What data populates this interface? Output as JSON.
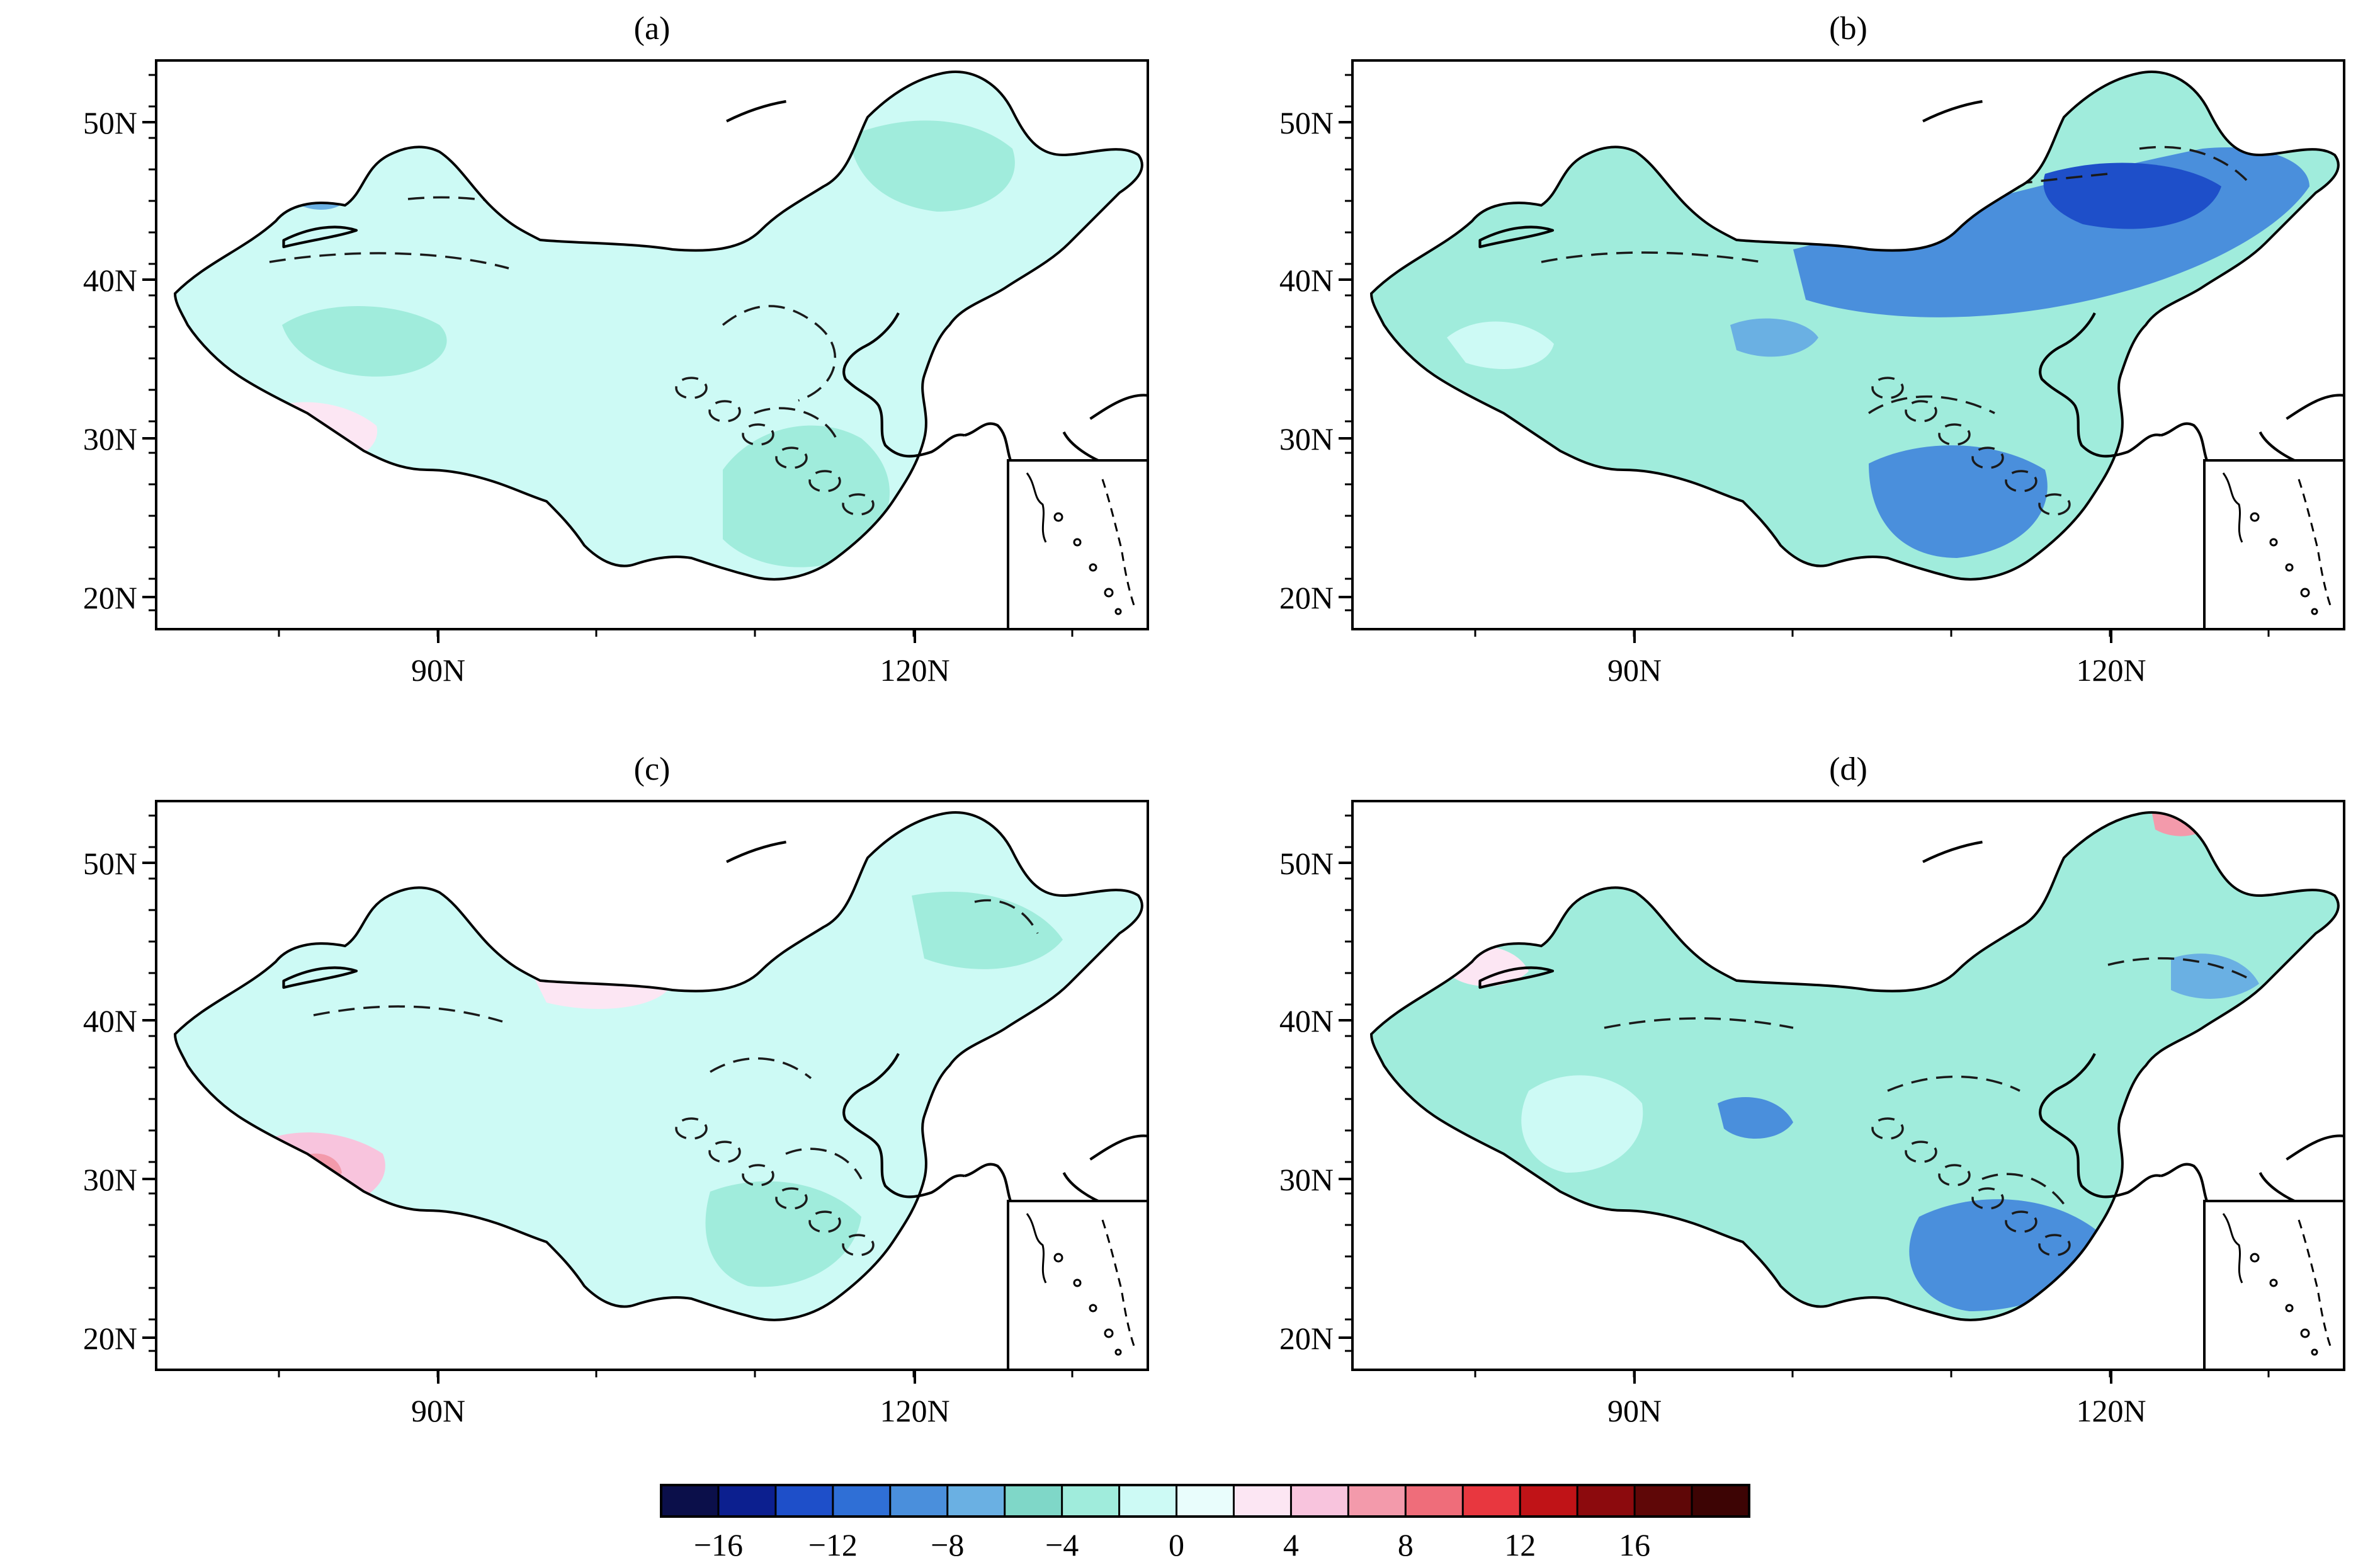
{
  "panels": [
    {
      "id": "a",
      "title": "(a)"
    },
    {
      "id": "b",
      "title": "(b)"
    },
    {
      "id": "c",
      "title": "(c)"
    },
    {
      "id": "d",
      "title": "(d)"
    }
  ],
  "axes": {
    "y_ticks": [
      "50N",
      "40N",
      "30N",
      "20N"
    ],
    "x_ticks": [
      "90N",
      "120N"
    ]
  },
  "colorbar": {
    "tick_labels": [
      "−16",
      "−12",
      "−8",
      "−4",
      "0",
      "4",
      "8",
      "12",
      "16"
    ],
    "colors": [
      "#0b0f4a",
      "#0c1f8f",
      "#1e4fc9",
      "#2f6fd6",
      "#4a8fdc",
      "#6ab0e3",
      "#7fd7c8",
      "#a0ecdc",
      "#cdfaf5",
      "#e9fdfc",
      "#fce6f3",
      "#f8c4dd",
      "#f39aab",
      "#ef6d7a",
      "#e8373f",
      "#c01317",
      "#8c0a0d",
      "#5f0707",
      "#3d0404"
    ]
  }
}
